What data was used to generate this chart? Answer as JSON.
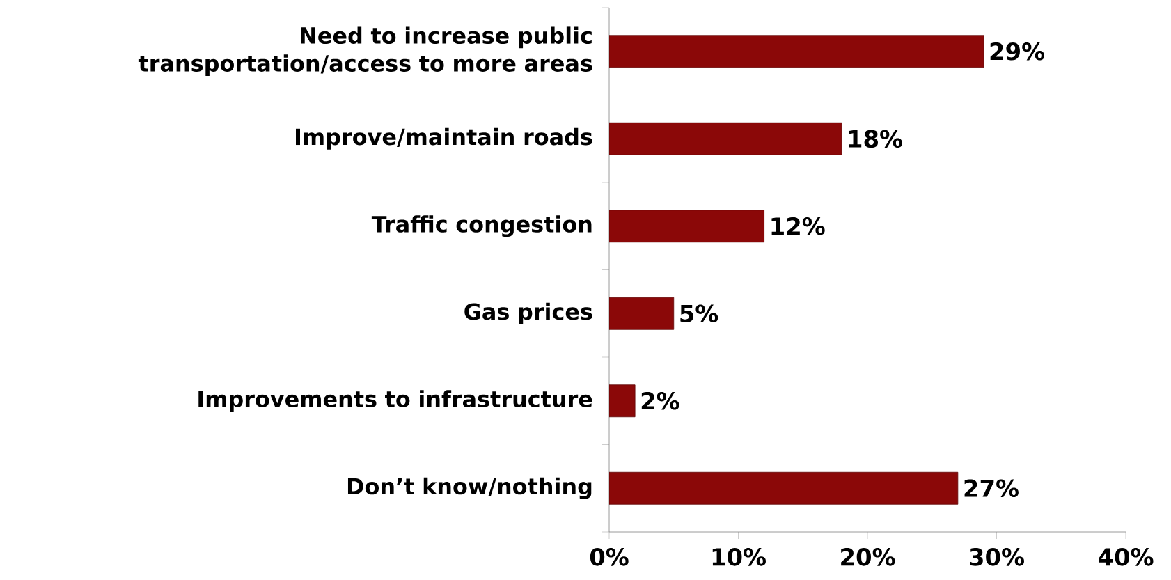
{
  "chart_data": {
    "type": "bar",
    "orientation": "horizontal",
    "categories": [
      "Need to increase public transportation/access to more areas",
      "Improve/maintain roads",
      "Traffic congestion",
      "Gas prices",
      "Improvements to infrastructure",
      "Don’t know/nothing"
    ],
    "values": [
      29,
      18,
      12,
      5,
      2,
      27
    ],
    "value_labels": [
      "29%",
      "18%",
      "12%",
      "5%",
      "2%",
      "27%"
    ],
    "color": "#8b0808",
    "xlim": [
      0,
      40
    ],
    "xticks": [
      {
        "value": 0,
        "label": "0%"
      },
      {
        "value": 10,
        "label": "10%"
      },
      {
        "value": 20,
        "label": "20%"
      },
      {
        "value": 30,
        "label": "30%"
      },
      {
        "value": 40,
        "label": "40%"
      }
    ]
  }
}
